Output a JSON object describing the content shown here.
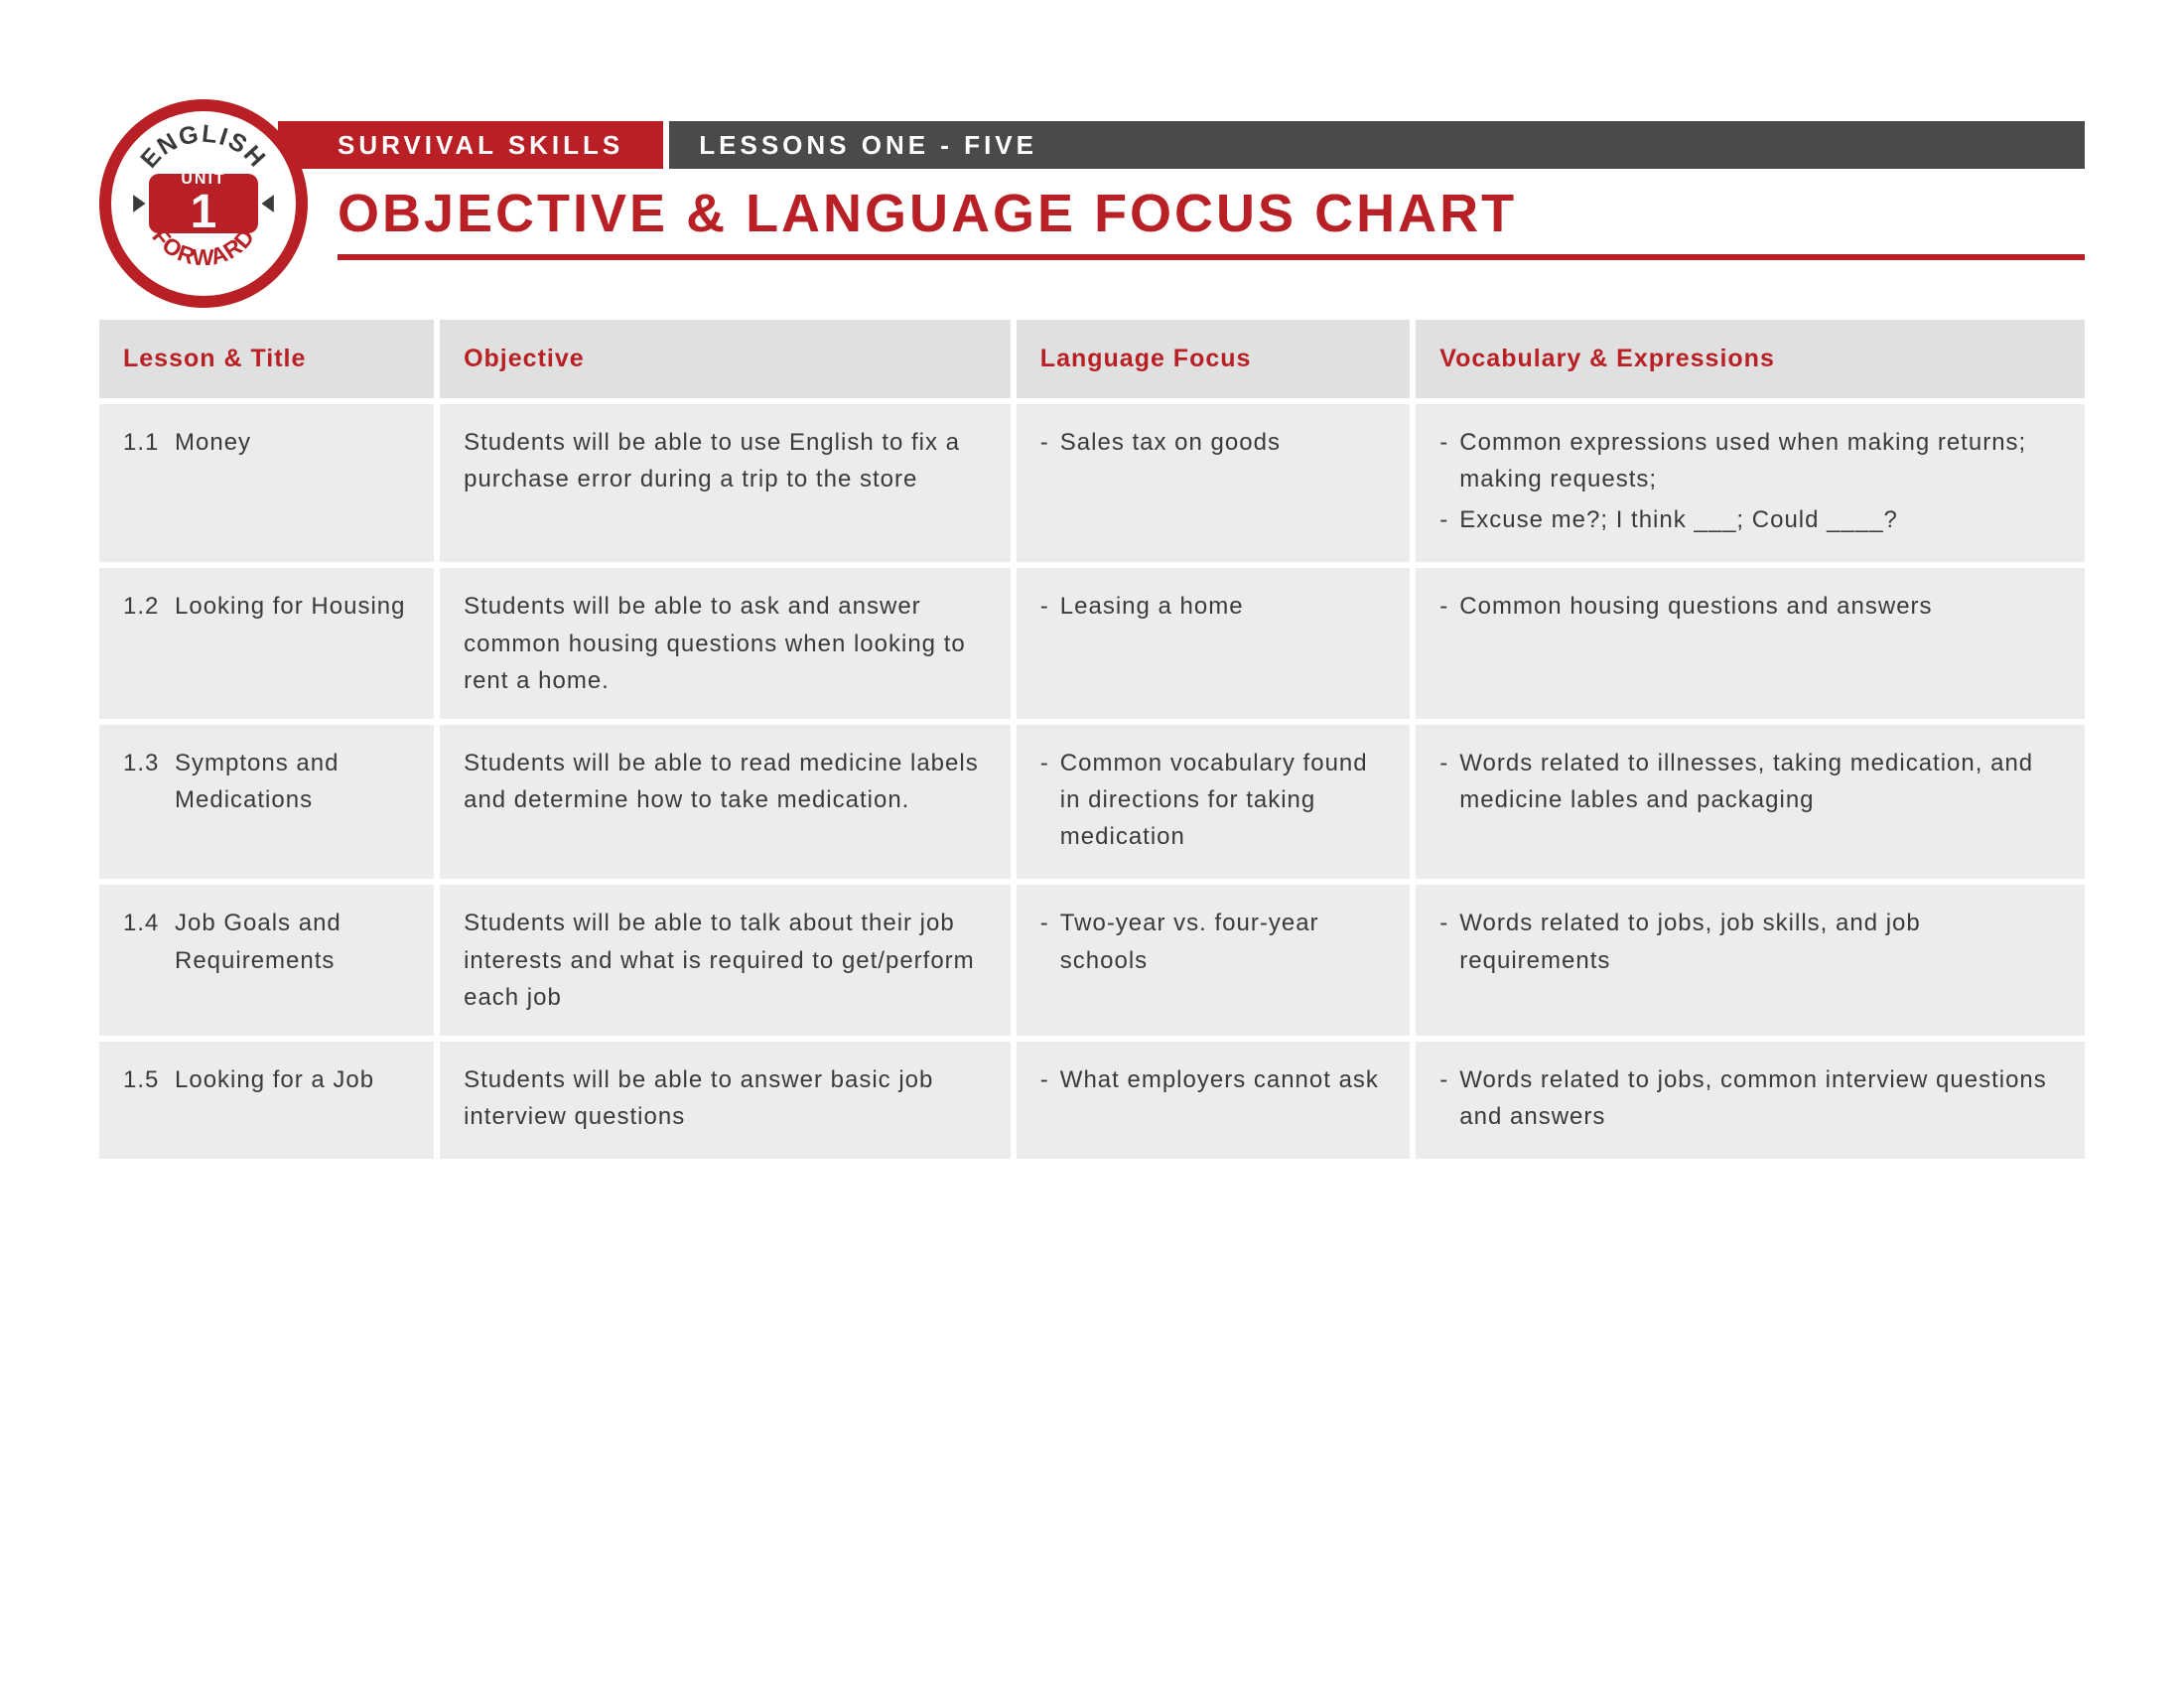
{
  "colors": {
    "red": "#b82025",
    "dark_gray": "#4a4a4a",
    "header_bg": "#e0e0e0",
    "row_bg": "#ececec",
    "text": "#3a3a3a"
  },
  "badge": {
    "top_text": "ENGLISH",
    "bottom_text": "FORWARD",
    "unit_label": "UNIT",
    "unit_number": "1"
  },
  "header": {
    "survival": "SURVIVAL SKILLS",
    "lessons": "LESSONS ONE - FIVE",
    "title": "OBJECTIVE & LANGUAGE FOCUS CHART"
  },
  "table": {
    "columns": [
      "Lesson & Title",
      "Objective",
      "Language Focus",
      "Vocabulary & Expressions"
    ],
    "rows": [
      {
        "num": "1.1",
        "title": "Money",
        "objective": "Students will be able to use English to fix a purchase error during a trip to the store",
        "focus": [
          "Sales tax on goods"
        ],
        "vocab": [
          "Common expressions used when making returns; making requests;",
          "Excuse me?; I think ___; Could ____?"
        ]
      },
      {
        "num": "1.2",
        "title": "Looking for Housing",
        "objective": "Students will be able to ask and answer common housing questions when looking to rent a home.",
        "focus": [
          "Leasing a home"
        ],
        "vocab": [
          "Common housing questions and answers"
        ]
      },
      {
        "num": "1.3",
        "title": "Symptons and Medications",
        "objective": "Students will be able to read medicine labels and determine how to take medication.",
        "focus": [
          "Common vocabulary found in directions for taking medication"
        ],
        "vocab": [
          "Words related to illnesses, taking medication, and medicine lables and packaging"
        ]
      },
      {
        "num": "1.4",
        "title": "Job Goals and Requirements",
        "objective": "Students will be able to talk about their job interests and what is required to get/perform each job",
        "focus": [
          "Two-year vs. four-year schools"
        ],
        "vocab": [
          "Words related to jobs, job skills, and job requirements"
        ]
      },
      {
        "num": "1.5",
        "title": "Looking for a Job",
        "objective": "Students will be able to answer basic job interview questions",
        "focus": [
          "What employers cannot ask"
        ],
        "vocab": [
          "Words related to jobs, common interview questions and answers"
        ]
      }
    ]
  }
}
